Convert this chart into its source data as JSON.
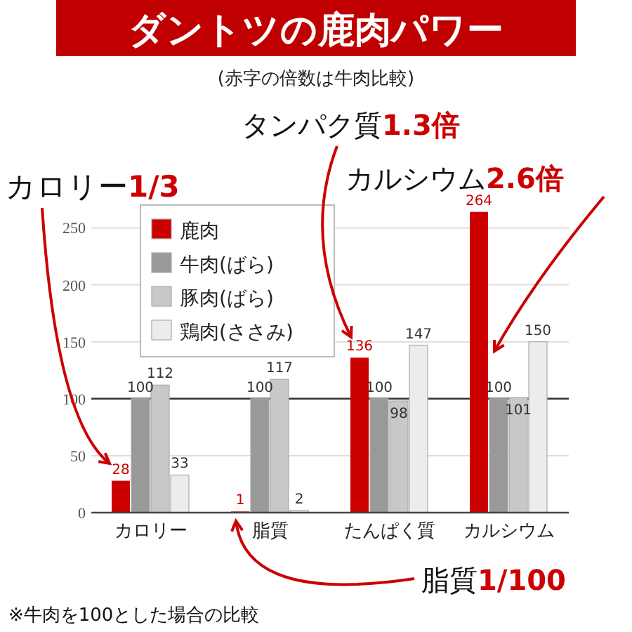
{
  "chart_data": {
    "type": "bar",
    "title": "ダントツの鹿肉パワー",
    "subtitle": "(赤字の倍数は牛肉比較)",
    "categories": [
      "カロリー",
      "脂質",
      "たんぱく質",
      "カルシウム"
    ],
    "series": [
      {
        "name": "鹿肉",
        "color": "#cc0000",
        "values": [
          28,
          1,
          136,
          264
        ]
      },
      {
        "name": "牛肉(ばら)",
        "color": "#999999",
        "values": [
          100,
          100,
          100,
          100
        ]
      },
      {
        "name": "豚肉(ばら)",
        "color": "#c8c8c8",
        "values": [
          112,
          117,
          98,
          101
        ]
      },
      {
        "name": "鶏肉(ささみ)",
        "color": "#ececec",
        "values": [
          33,
          2,
          147,
          150
        ]
      }
    ],
    "ylim": [
      0,
      270
    ],
    "yticks": [
      0,
      50,
      100,
      150,
      200,
      250
    ],
    "grid": "y",
    "legend": "top left",
    "data_labels": true,
    "ref_lines": [
      {
        "axis": "y",
        "value": 100,
        "color": "#333333"
      }
    ],
    "annotations": [
      "カロリー1/3",
      "タンパク質1.3倍",
      "カルシウム2.6倍",
      "脂質1/100",
      "※牛肉を100とした場合の比較"
    ]
  }
}
